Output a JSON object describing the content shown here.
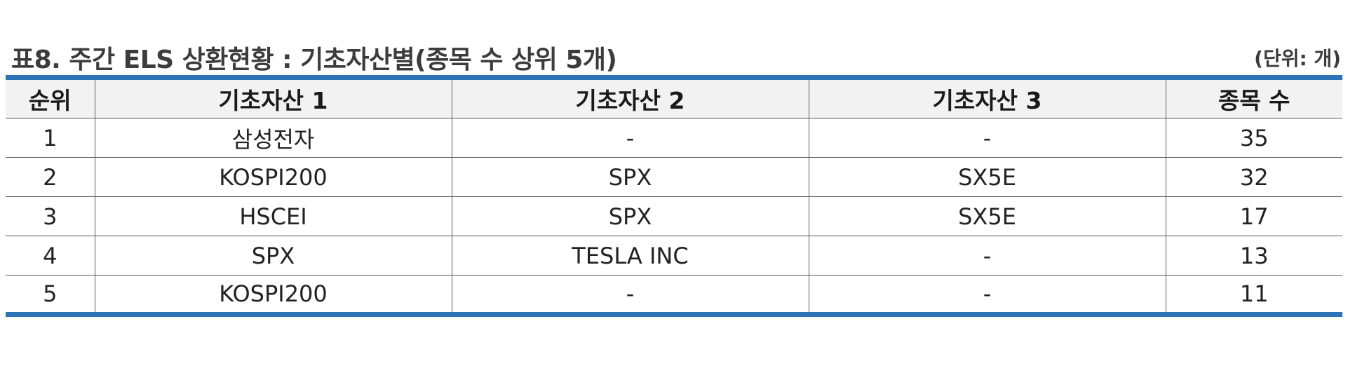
{
  "title": "표8. 주간 ELS 상환현황 : 기초자산별(종목 수 상위 5개)",
  "unit": "(단위: 개)",
  "table": {
    "headers": [
      "순위",
      "기초자산 1",
      "기초자산 2",
      "기초자산 3",
      "종목 수"
    ],
    "rows": [
      [
        "1",
        "삼성전자",
        "-",
        "-",
        "35"
      ],
      [
        "2",
        "KOSPI200",
        "SPX",
        "SX5E",
        "32"
      ],
      [
        "3",
        "HSCEI",
        "SPX",
        "SX5E",
        "17"
      ],
      [
        "4",
        "SPX",
        "TESLA INC",
        "-",
        "13"
      ],
      [
        "5",
        "KOSPI200",
        "-",
        "-",
        "11"
      ]
    ]
  },
  "colors": {
    "accent_border": "#2e73b8",
    "header_bg": "#f2f2f2"
  }
}
